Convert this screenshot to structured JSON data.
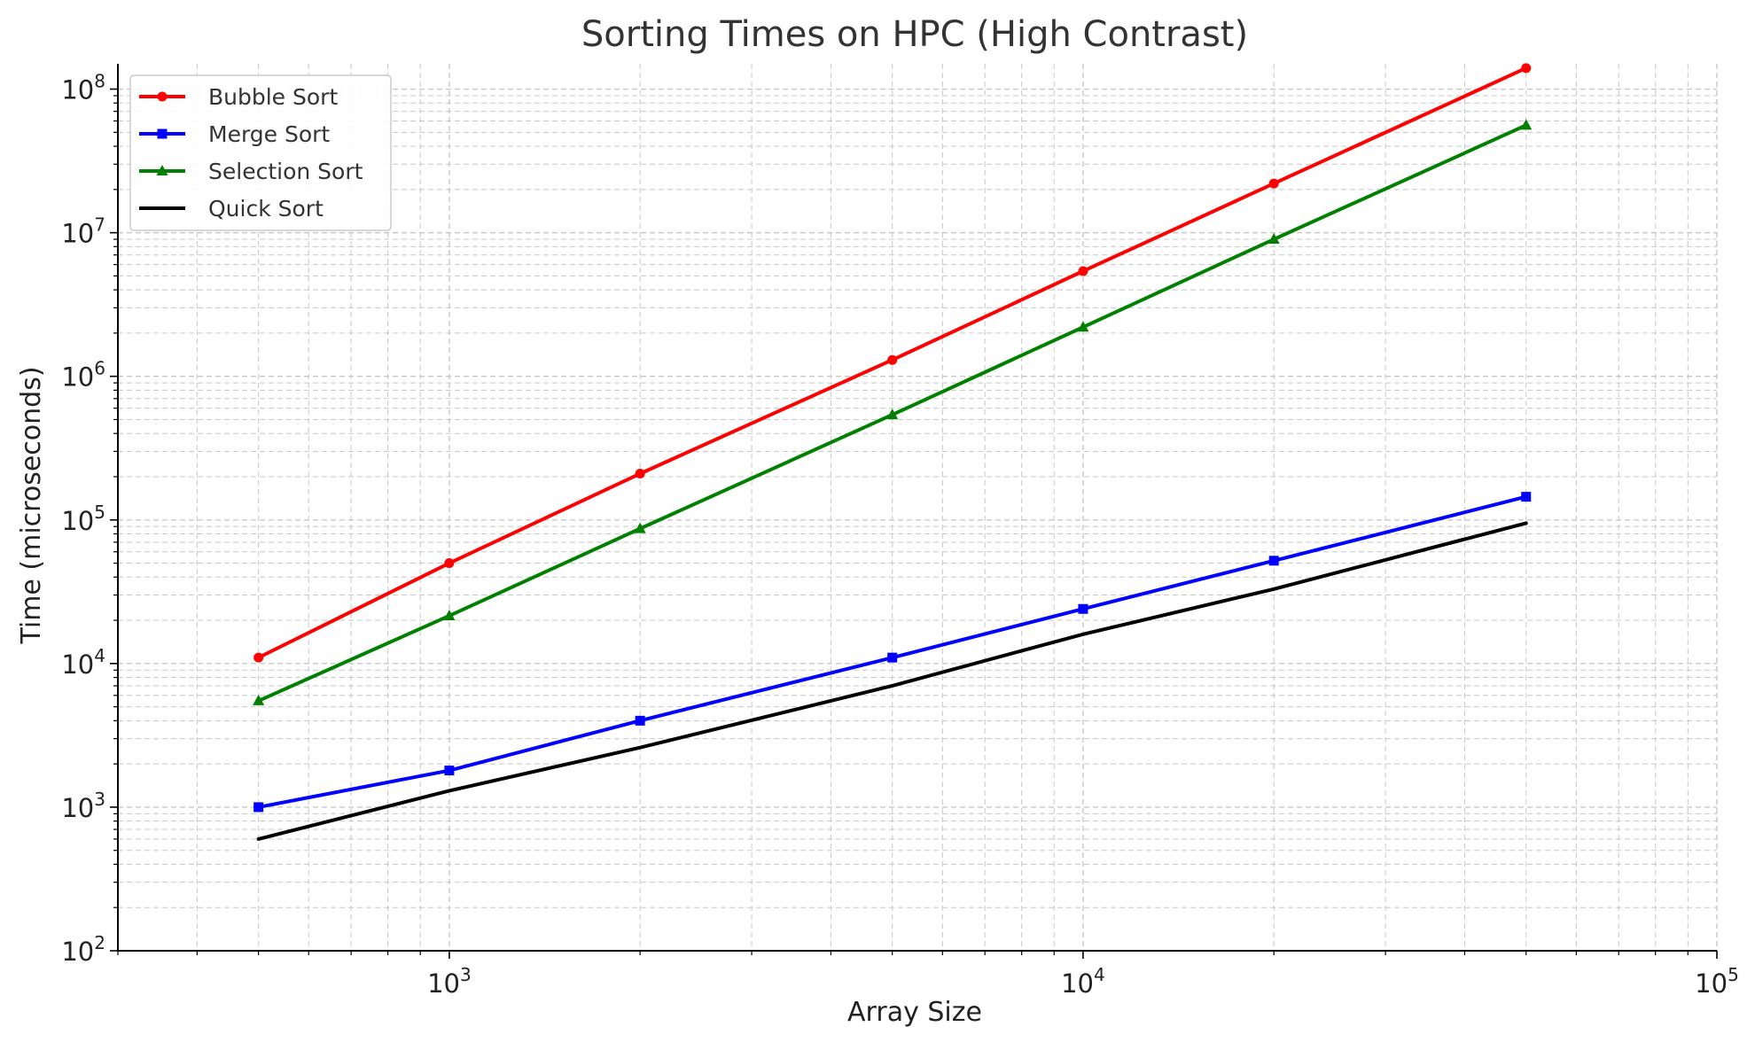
{
  "chart_data": {
    "type": "line",
    "title": "Sorting Times on HPC (High Contrast)",
    "xlabel": "Array Size",
    "ylabel": "Time (microseconds)",
    "xscale": "log",
    "yscale": "log",
    "xlim": [
      300,
      100000
    ],
    "ylim": [
      100,
      150000000
    ],
    "x_ticks": [
      {
        "value": 1000,
        "base": "10",
        "exp": "3"
      },
      {
        "value": 10000,
        "base": "10",
        "exp": "4"
      },
      {
        "value": 100000,
        "base": "10",
        "exp": "5"
      }
    ],
    "y_ticks": [
      {
        "value": 100,
        "base": "10",
        "exp": "2"
      },
      {
        "value": 1000,
        "base": "10",
        "exp": "3"
      },
      {
        "value": 10000,
        "base": "10",
        "exp": "4"
      },
      {
        "value": 100000,
        "base": "10",
        "exp": "5"
      },
      {
        "value": 1000000,
        "base": "10",
        "exp": "6"
      },
      {
        "value": 10000000,
        "base": "10",
        "exp": "7"
      },
      {
        "value": 100000000,
        "base": "10",
        "exp": "8"
      }
    ],
    "grid": "on (major and minor, dashed)",
    "legend_position": "top-left",
    "x": [
      500,
      1000,
      2000,
      5000,
      10000,
      20000,
      50000
    ],
    "series": [
      {
        "name": "Bubble Sort",
        "color": "#ff0000",
        "marker": "circle",
        "values": [
          11000,
          50000,
          210000,
          1300000,
          5400000,
          22000000,
          140000000
        ]
      },
      {
        "name": "Merge Sort",
        "color": "#0000ff",
        "marker": "square",
        "values": [
          1000,
          1800,
          4000,
          11000,
          24000,
          52000,
          145000
        ]
      },
      {
        "name": "Selection Sort",
        "color": "#008000",
        "marker": "triangle",
        "values": [
          5500,
          21500,
          87000,
          540000,
          2200000,
          9000000,
          56000000
        ]
      },
      {
        "name": "Quick Sort",
        "color": "#000000",
        "marker": "none",
        "values": [
          600,
          1300,
          2600,
          7000,
          16000,
          33000,
          95000
        ]
      }
    ]
  }
}
